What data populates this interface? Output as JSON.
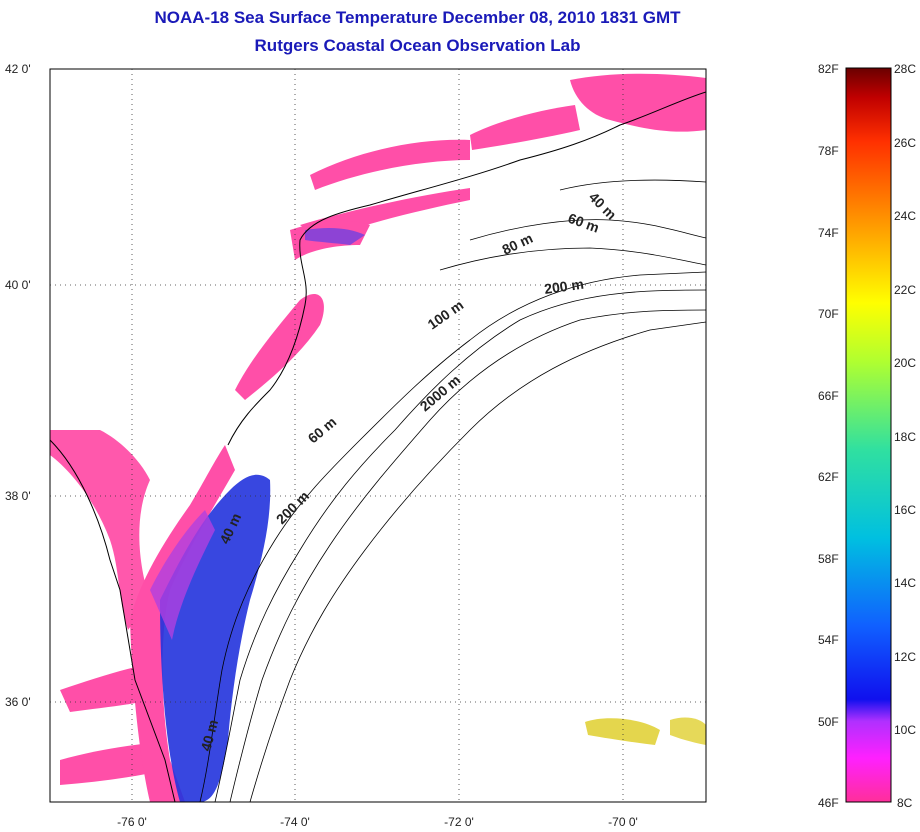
{
  "header": {
    "title_line1": "NOAA-18 Sea Surface Temperature December 08, 2010 1831 GMT",
    "title_line2": "Rutgers Coastal Ocean Observation Lab"
  },
  "map": {
    "lat_labels": [
      "42 0'",
      "40 0'",
      "38 0'",
      "36 0'"
    ],
    "lon_labels": [
      "-76 0'",
      "-74 0'",
      "-72 0'",
      "-70 0'"
    ],
    "isobath_labels": [
      "40 m",
      "60 m",
      "80 m",
      "200 m",
      "100 m",
      "2000 m",
      "60 m",
      "200 m",
      "40 m",
      "40 m"
    ],
    "water_color_cold": "#ff4fa8",
    "water_color_cool": "#2233dd",
    "land_color": "#ffffff"
  },
  "colorbar": {
    "f_labels": [
      "82F",
      "78F",
      "74F",
      "70F",
      "66F",
      "62F",
      "58F",
      "54F",
      "50F",
      "46F"
    ],
    "c_labels": [
      "28C",
      "26C",
      "24C",
      "22C",
      "20C",
      "18C",
      "16C",
      "14C",
      "12C",
      "10C",
      "8C"
    ],
    "colors": [
      "#ff2f9a",
      "#ff20ff",
      "#b030ff",
      "#1010ee",
      "#1060ff",
      "#00c0e0",
      "#30e0a0",
      "#b0ff30",
      "#ffff00",
      "#ffa000",
      "#ff3000",
      "#c00000",
      "#6a0000"
    ]
  }
}
